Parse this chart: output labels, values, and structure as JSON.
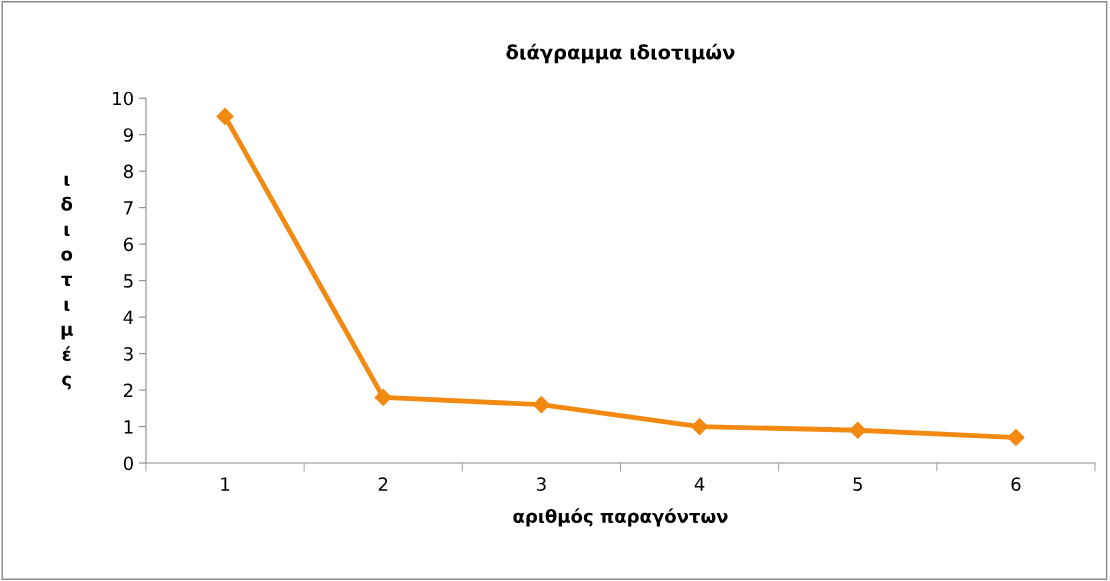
{
  "chart_data": {
    "type": "line",
    "title": "διάγραμμα ιδιοτιμών",
    "xlabel": "αριθμός παραγόντων",
    "ylabel": "ιδιοτιμές",
    "categories": [
      "1",
      "2",
      "3",
      "4",
      "5",
      "6"
    ],
    "series": [
      {
        "color": "#f28a12",
        "values": [
          9.5,
          1.8,
          1.6,
          1.0,
          0.9,
          0.7
        ]
      }
    ],
    "ylim": [
      0,
      10
    ],
    "yticks": [
      0,
      1,
      2,
      3,
      4,
      5,
      6,
      7,
      8,
      9,
      10
    ],
    "grid": false,
    "legend": false,
    "marker": "diamond",
    "line_style": "solid"
  }
}
